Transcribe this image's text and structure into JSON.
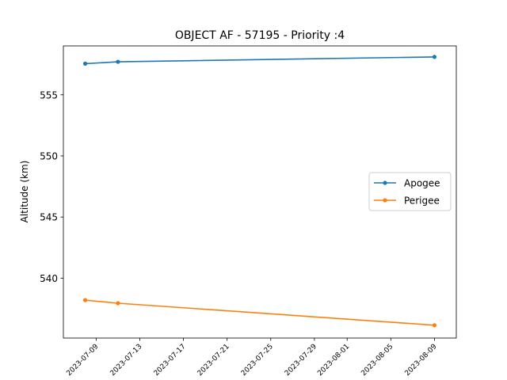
{
  "chart_data": {
    "type": "line",
    "title": "OBJECT AF - 57195 - Priority :4",
    "xlabel": "",
    "ylabel": "Altitude (km)",
    "x": [
      "2023-07-08",
      "2023-07-11",
      "2023-08-09"
    ],
    "series": [
      {
        "name": "Apogee",
        "values": [
          557.55,
          557.7,
          558.1
        ],
        "color": "#1f77b4"
      },
      {
        "name": "Perigee",
        "values": [
          538.2,
          537.95,
          536.15
        ],
        "color": "#ff7f0e"
      }
    ],
    "ylim": [
      535.1,
      559.0
    ],
    "xlim": [
      "2023-07-06",
      "2023-08-11"
    ],
    "y_ticks": [
      540,
      545,
      550,
      555
    ],
    "x_ticks": [
      "2023-07-09",
      "2023-07-13",
      "2023-07-17",
      "2023-07-21",
      "2023-07-25",
      "2023-07-29",
      "2023-08-01",
      "2023-08-05",
      "2023-08-09"
    ],
    "grid": false,
    "legend_position": "center-right"
  }
}
